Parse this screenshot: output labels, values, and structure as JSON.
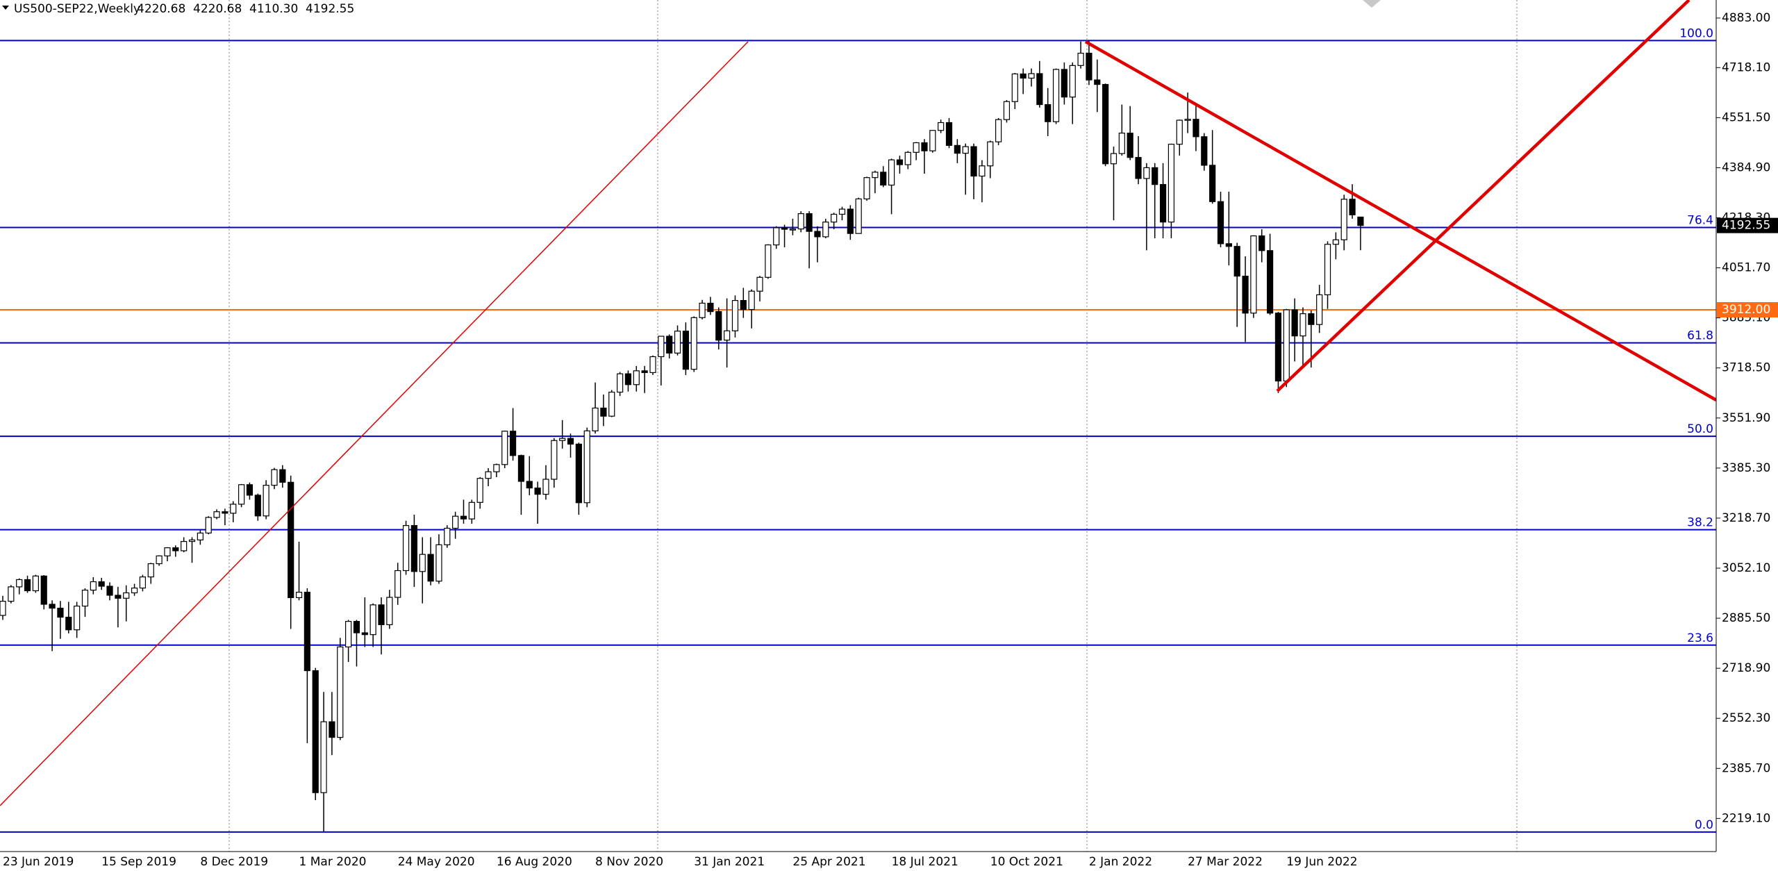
{
  "header": {
    "symbol": "US500-SEP22,Weekly",
    "ohlc_labels": [
      "4220.68",
      "4220.68",
      "4110.30",
      "4192.55"
    ]
  },
  "chart_data": {
    "type": "candlestick",
    "categories": [
      "23 Jun 2019",
      null,
      null,
      null,
      null,
      null,
      null,
      null,
      null,
      null,
      null,
      null,
      "15 Sep 2019",
      null,
      null,
      null,
      null,
      null,
      null,
      null,
      null,
      null,
      null,
      null,
      "8 Dec 2019",
      null,
      null,
      null,
      null,
      null,
      null,
      null,
      null,
      null,
      null,
      null,
      "1 Mar 2020",
      null,
      null,
      null,
      null,
      null,
      null,
      null,
      null,
      null,
      null,
      null,
      "24 May 2020",
      null,
      null,
      null,
      null,
      null,
      null,
      null,
      null,
      null,
      null,
      null,
      "16 Aug 2020",
      null,
      null,
      null,
      null,
      null,
      null,
      null,
      null,
      null,
      null,
      null,
      "8 Nov 2020",
      null,
      null,
      null,
      null,
      null,
      null,
      null,
      null,
      null,
      null,
      null,
      "31 Jan 2021",
      null,
      null,
      null,
      null,
      null,
      null,
      null,
      null,
      null,
      null,
      null,
      "25 Apr 2021",
      null,
      null,
      null,
      null,
      null,
      null,
      null,
      null,
      null,
      null,
      null,
      "18 Jul 2021",
      null,
      null,
      null,
      null,
      null,
      null,
      null,
      null,
      null,
      null,
      null,
      "10 Oct 2021",
      null,
      null,
      null,
      null,
      null,
      null,
      null,
      null,
      null,
      null,
      null,
      "2 Jan 2022",
      null,
      null,
      null,
      null,
      null,
      null,
      null,
      null,
      null,
      null,
      null,
      "27 Mar 2022",
      null,
      null,
      null,
      null,
      null,
      null,
      null,
      null,
      null,
      null,
      null,
      "19 Jun 2022",
      null,
      null,
      null,
      null,
      null,
      null,
      null,
      null,
      null
    ],
    "open": [
      2895,
      2942,
      2990,
      3014,
      2977,
      3026,
      2932,
      2919,
      2889,
      2847,
      2926,
      2979,
      3007,
      2992,
      2962,
      2952,
      2970,
      2986,
      3023,
      3067,
      3093,
      3120,
      3110,
      3141,
      3146,
      3169,
      3221,
      3240,
      3235,
      3265,
      3330,
      3295,
      3226,
      3328,
      3380,
      3338,
      2954,
      2972,
      2711,
      2305,
      2541,
      2489,
      2790,
      2875,
      2837,
      2831,
      2930,
      2864,
      2955,
      3044,
      3194,
      3041,
      3098,
      3009,
      3130,
      3185,
      3225,
      3216,
      3271,
      3351,
      3373,
      3397,
      3508,
      3427,
      3341,
      3319,
      3298,
      3348,
      3477,
      3484,
      3465,
      3270,
      3509,
      3585,
      3558,
      3638,
      3699,
      3663,
      3709,
      3703,
      3756,
      3824,
      3768,
      3841,
      3714,
      3886,
      3934,
      3906,
      3811,
      3842,
      3943,
      3913,
      3974,
      4020,
      4128,
      4185,
      4180,
      4181,
      4232,
      4173,
      4155,
      4204,
      4230,
      4247,
      4166,
      4281,
      4352,
      4370,
      4327,
      4411,
      4395,
      4436,
      4468,
      4441,
      4509,
      4535,
      4459,
      4433,
      4455,
      4357,
      4391,
      4471,
      4545,
      4605,
      4697,
      4683,
      4698,
      4595,
      4538,
      4712,
      4620,
      4725,
      4766,
      4677,
      4662,
      4398,
      4432,
      4500,
      4419,
      4349,
      4385,
      4329,
      4204,
      4463,
      4543,
      4546,
      4488,
      4393,
      4272,
      4132,
      4123,
      4024,
      3901,
      4158,
      4109,
      3901,
      3675,
      3912,
      3825,
      3899,
      3863,
      3962,
      4130,
      4145,
      4280,
      4220.68
    ],
    "high": [
      2960,
      2996,
      3018,
      3027,
      3030,
      3029,
      2945,
      2943,
      2940,
      2940,
      2985,
      3022,
      3020,
      3005,
      2990,
      2995,
      3000,
      3030,
      3070,
      3095,
      3122,
      3128,
      3155,
      3155,
      3178,
      3225,
      3248,
      3250,
      3275,
      3332,
      3337,
      3300,
      3345,
      3386,
      3395,
      3360,
      3140,
      2985,
      2720,
      2640,
      2640,
      2820,
      2880,
      2880,
      2955,
      2935,
      2955,
      2980,
      3070,
      3210,
      3230,
      3155,
      3155,
      3165,
      3195,
      3240,
      3280,
      3280,
      3355,
      3385,
      3400,
      3510,
      3585,
      3430,
      3425,
      3340,
      3395,
      3485,
      3545,
      3500,
      3470,
      3520,
      3670,
      3630,
      3645,
      3705,
      3710,
      3725,
      3725,
      3760,
      3825,
      3830,
      3860,
      3870,
      3890,
      3945,
      3955,
      3920,
      3950,
      3960,
      3985,
      3980,
      4025,
      4130,
      4190,
      4195,
      4215,
      4240,
      4240,
      4190,
      4215,
      4235,
      4255,
      4260,
      4285,
      4355,
      4375,
      4390,
      4415,
      4425,
      4440,
      4470,
      4480,
      4510,
      4545,
      4550,
      4480,
      4465,
      4465,
      4410,
      4475,
      4550,
      4610,
      4700,
      4715,
      4715,
      4740,
      4650,
      4715,
      4735,
      4735,
      4805,
      4808,
      4745,
      4665,
      4455,
      4595,
      4590,
      4490,
      4400,
      4400,
      4400,
      4465,
      4545,
      4635,
      4595,
      4500,
      4510,
      4305,
      4305,
      4135,
      4090,
      4160,
      4180,
      4165,
      3905,
      3915,
      3950,
      3920,
      3910,
      3995,
      4140,
      4170,
      4295,
      4330,
      4220.68
    ],
    "low": [
      2880,
      2935,
      2965,
      2970,
      2970,
      2915,
      2776,
      2817,
      2835,
      2820,
      2890,
      2965,
      2980,
      2945,
      2855,
      2875,
      2960,
      2975,
      3000,
      3060,
      3075,
      3090,
      3105,
      3070,
      3130,
      3165,
      3215,
      3195,
      3205,
      3255,
      3280,
      3210,
      3215,
      3315,
      3320,
      2850,
      2945,
      2470,
      2280,
      2175,
      2430,
      2480,
      2740,
      2725,
      2790,
      2790,
      2765,
      2850,
      2930,
      3030,
      2990,
      2935,
      2995,
      3000,
      3120,
      3150,
      3200,
      3200,
      3250,
      3325,
      3355,
      3385,
      3410,
      3230,
      3295,
      3200,
      3280,
      3320,
      3450,
      3420,
      3230,
      3255,
      3500,
      3525,
      3555,
      3625,
      3640,
      3640,
      3635,
      3695,
      3660,
      3750,
      3760,
      3695,
      3705,
      3880,
      3895,
      3780,
      3720,
      3820,
      3885,
      3850,
      3940,
      4015,
      4115,
      4120,
      4160,
      4170,
      4050,
      4070,
      4150,
      4180,
      4210,
      4145,
      4165,
      4275,
      4300,
      4320,
      4230,
      4365,
      4380,
      4410,
      4365,
      4435,
      4500,
      4450,
      4400,
      4295,
      4280,
      4270,
      4350,
      4460,
      4535,
      4580,
      4630,
      4655,
      4585,
      4490,
      4530,
      4595,
      4530,
      4715,
      4660,
      4570,
      4390,
      4210,
      4425,
      4410,
      4330,
      4110,
      4150,
      4150,
      4150,
      4425,
      4500,
      4440,
      4375,
      4265,
      4120,
      4060,
      3855,
      3805,
      3885,
      4070,
      3895,
      3635,
      3655,
      3740,
      3720,
      3720,
      3835,
      3915,
      4080,
      4110,
      4215,
      4110.3
    ],
    "close": [
      2942,
      2990,
      3014,
      2977,
      3026,
      2932,
      2919,
      2889,
      2847,
      2926,
      2979,
      3007,
      2992,
      2962,
      2952,
      2970,
      2986,
      3023,
      3067,
      3093,
      3120,
      3110,
      3141,
      3146,
      3169,
      3221,
      3240,
      3235,
      3265,
      3330,
      3295,
      3226,
      3328,
      3380,
      3338,
      2954,
      2972,
      2711,
      2305,
      2541,
      2489,
      2790,
      2875,
      2837,
      2831,
      2930,
      2864,
      2955,
      3044,
      3194,
      3041,
      3098,
      3009,
      3130,
      3185,
      3225,
      3216,
      3271,
      3351,
      3373,
      3397,
      3508,
      3427,
      3341,
      3319,
      3298,
      3348,
      3477,
      3484,
      3465,
      3270,
      3509,
      3585,
      3558,
      3638,
      3699,
      3663,
      3709,
      3703,
      3756,
      3824,
      3768,
      3841,
      3714,
      3886,
      3934,
      3906,
      3811,
      3842,
      3943,
      3913,
      3974,
      4020,
      4128,
      4185,
      4180,
      4181,
      4232,
      4173,
      4155,
      4204,
      4230,
      4247,
      4166,
      4281,
      4352,
      4370,
      4327,
      4411,
      4395,
      4436,
      4468,
      4441,
      4509,
      4535,
      4459,
      4433,
      4455,
      4357,
      4391,
      4471,
      4545,
      4605,
      4697,
      4683,
      4698,
      4595,
      4538,
      4712,
      4620,
      4725,
      4766,
      4677,
      4662,
      4398,
      4432,
      4500,
      4419,
      4349,
      4385,
      4329,
      4204,
      4463,
      4543,
      4546,
      4488,
      4393,
      4272,
      4132,
      4123,
      4024,
      3901,
      4158,
      4109,
      3901,
      3675,
      3912,
      3825,
      3899,
      3863,
      3962,
      4130,
      4145,
      4280,
      4228,
      4192.55
    ],
    "up_color": "#ffffff",
    "down_color": "#000000",
    "ylim": [
      2109,
      4943
    ],
    "yticks": [
      {
        "value": 2219.1,
        "label": "2219.10"
      },
      {
        "value": 2385.7,
        "label": "2385.70"
      },
      {
        "value": 2552.3,
        "label": "2552.30"
      },
      {
        "value": 2718.9,
        "label": "2718.90"
      },
      {
        "value": 2885.5,
        "label": "2885.50"
      },
      {
        "value": 3052.1,
        "label": "3052.10"
      },
      {
        "value": 3218.7,
        "label": "3218.70"
      },
      {
        "value": 3385.3,
        "label": "3385.30"
      },
      {
        "value": 3551.9,
        "label": "3551.90"
      },
      {
        "value": 3718.5,
        "label": "3718.50"
      },
      {
        "value": 3885.1,
        "label": "3885.10"
      },
      {
        "value": 4051.7,
        "label": "4051.70"
      },
      {
        "value": 4218.3,
        "label": "4218.30"
      },
      {
        "value": 4384.9,
        "label": "4384.90"
      },
      {
        "value": 4551.5,
        "label": "4551.50"
      },
      {
        "value": 4718.1,
        "label": "4718.10"
      },
      {
        "value": 4883,
        "label": "4883.00"
      }
    ],
    "fibonacci": {
      "color": "#0000cd",
      "levels": [
        {
          "value": 2174,
          "label": "0.0"
        },
        {
          "value": 2796,
          "label": "23.6"
        },
        {
          "value": 3180,
          "label": "38.2"
        },
        {
          "value": 3491,
          "label": "50.0"
        },
        {
          "value": 3802,
          "label": "61.8"
        },
        {
          "value": 4186,
          "label": "76.4"
        },
        {
          "value": 4808,
          "label": "100.0"
        }
      ]
    },
    "hlines": [
      {
        "value": 3912,
        "label": "3912.00",
        "color": "#ff6a13"
      }
    ]
  }
}
